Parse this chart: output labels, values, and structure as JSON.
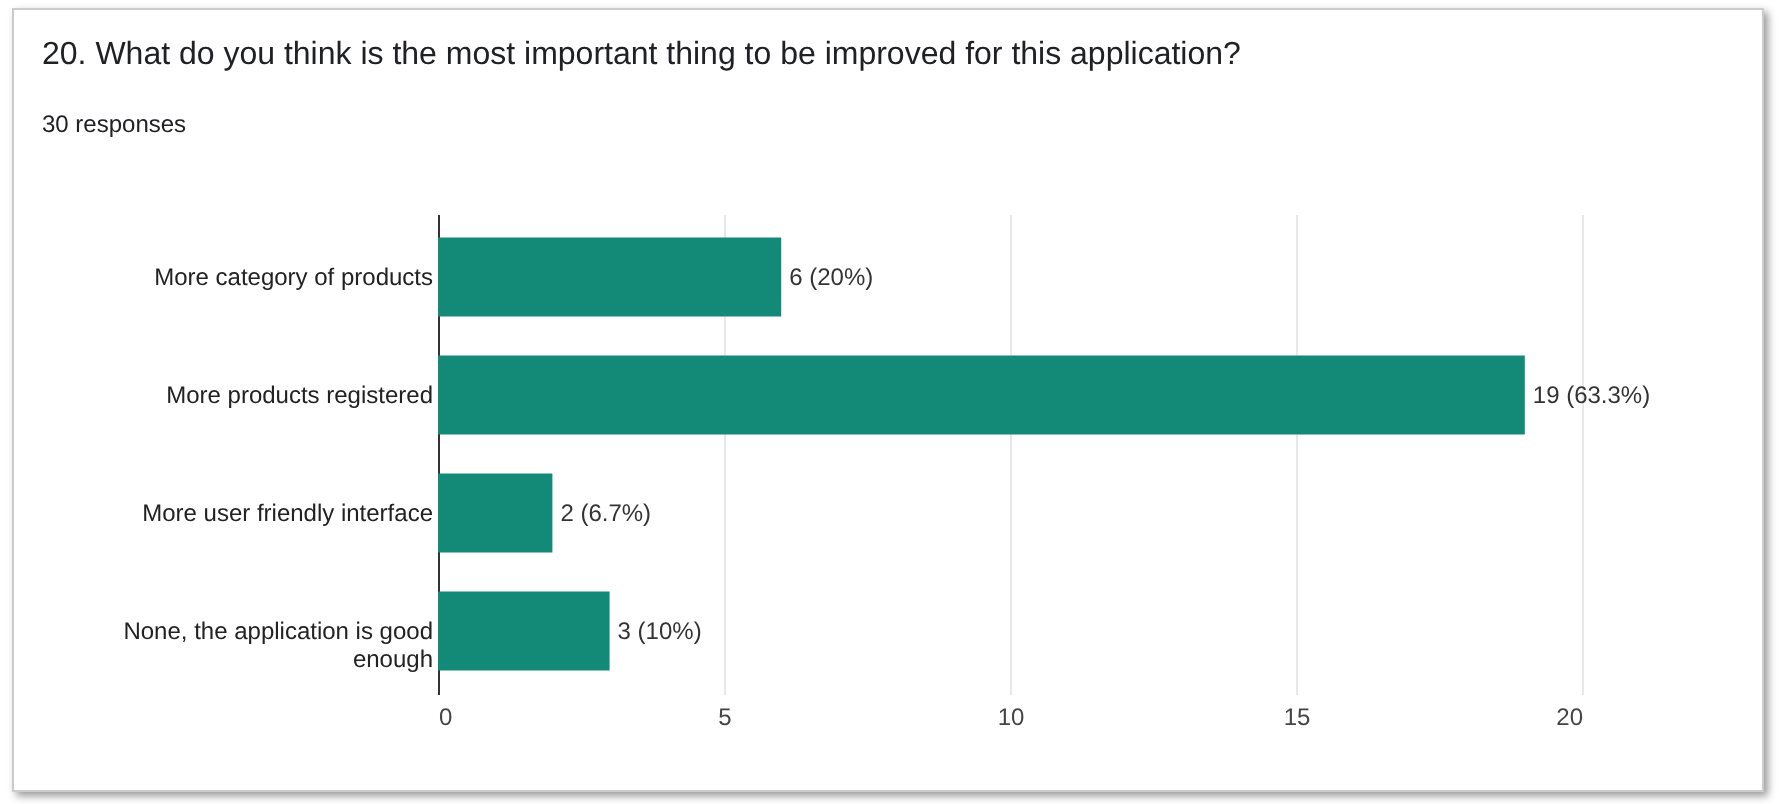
{
  "chart_data": {
    "type": "bar",
    "orientation": "horizontal",
    "title": "20. What do you think is the most important thing to be improved for this application?",
    "subtitle": "30 responses",
    "categories": [
      "More category of products",
      "More products registered",
      "More user friendly interface",
      "None, the application is good enough"
    ],
    "values": [
      6,
      19,
      2,
      3
    ],
    "color": "#138a78",
    "value_labels": [
      "6 (20%)",
      "19 (63.3%)",
      "2 (6.7%)",
      "3 (10%)"
    ],
    "xlim": [
      0,
      20
    ],
    "xticks": [
      0,
      5,
      10,
      15,
      20
    ],
    "grid": "x"
  }
}
